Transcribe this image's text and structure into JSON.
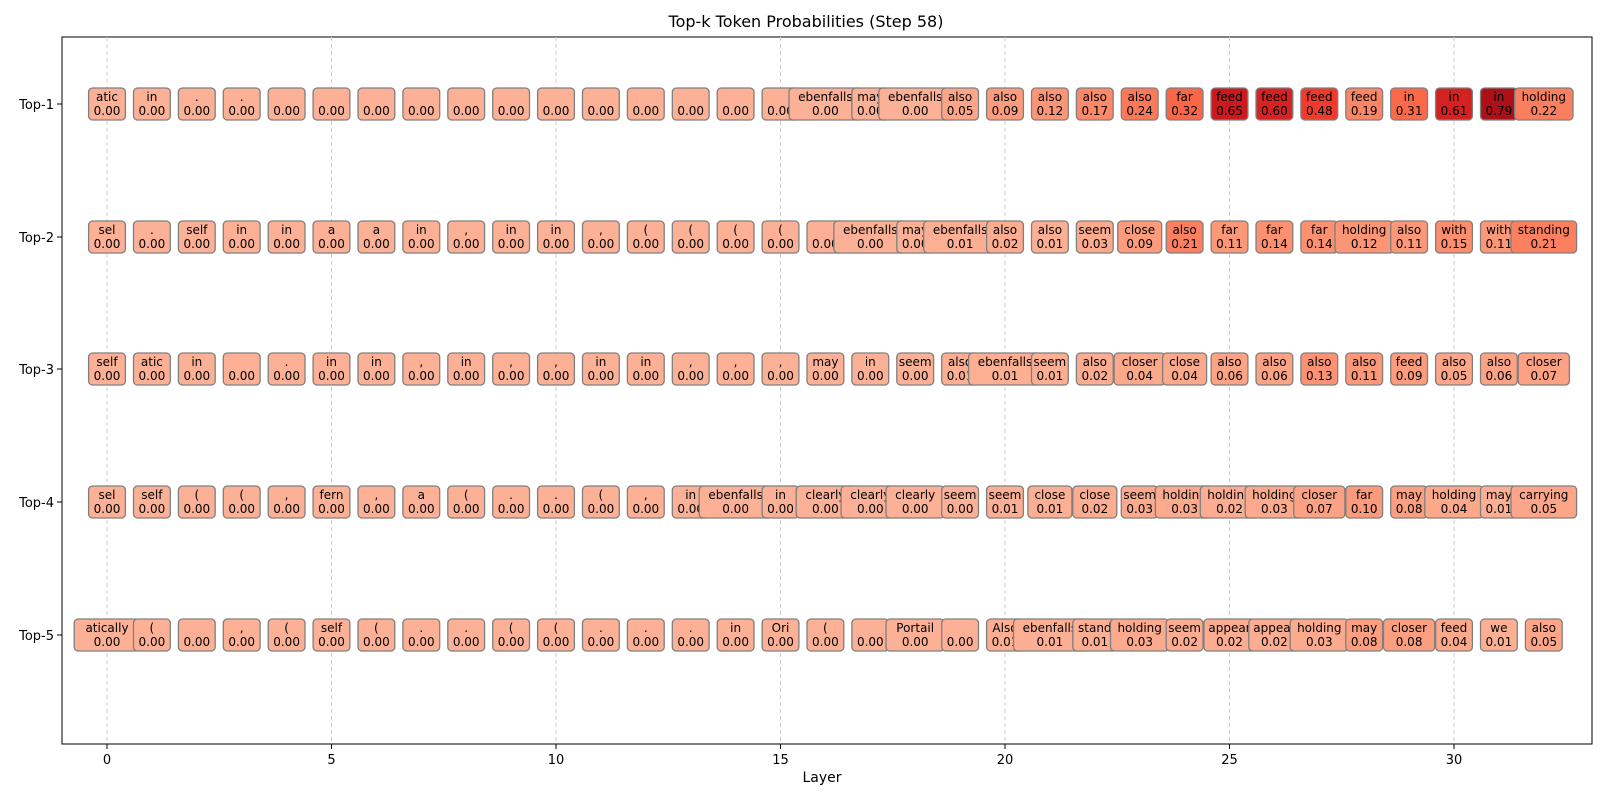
{
  "chart_data": {
    "type": "heatmap",
    "title": "Top-k Token Probabilities (Step 58)",
    "xlabel": "Layer",
    "ylabel": "",
    "rows": [
      "Top-1",
      "Top-2",
      "Top-3",
      "Top-4",
      "Top-5"
    ],
    "layers": [
      0,
      1,
      2,
      3,
      4,
      5,
      6,
      7,
      8,
      9,
      10,
      11,
      12,
      13,
      14,
      15,
      16,
      17,
      18,
      19,
      20,
      21,
      22,
      23,
      24,
      25,
      26,
      27,
      28,
      29,
      30,
      31,
      32
    ],
    "xlim": [
      -1,
      33
    ],
    "xticks": [
      0,
      5,
      10,
      15,
      20,
      25,
      30
    ],
    "grid": "vertical dashed",
    "colormap": "Reds",
    "tokens": [
      [
        "atic",
        "in",
        ".",
        ".",
        "",
        "",
        "",
        "",
        "",
        "",
        "",
        "",
        "",
        "",
        "",
        "",
        "ebenfalls",
        "may",
        "ebenfalls",
        "also",
        "also",
        "also",
        "also",
        "also",
        "far",
        "feed",
        "feed",
        "feed",
        "feed",
        "in",
        "in",
        "in",
        "holding"
      ],
      [
        "sel",
        ".",
        "self",
        "in",
        "in",
        "a",
        "a",
        "in",
        ",",
        "in",
        "in",
        ",",
        "(",
        "(",
        "(",
        "(",
        "",
        "ebenfalls",
        "may",
        "ebenfalls",
        "also",
        "also",
        "seem",
        "close",
        "also",
        "far",
        "far",
        "far",
        "holding",
        "also",
        "with",
        "with",
        "standing"
      ],
      [
        "self",
        "atic",
        "in",
        "",
        ".",
        "in",
        "in",
        ",",
        "in",
        ",",
        ",",
        "in",
        "in",
        ",",
        ",",
        ",",
        "may",
        "in",
        "seem",
        "also",
        "ebenfalls",
        "seem",
        "also",
        "closer",
        "close",
        "also",
        "also",
        "also",
        "also",
        "feed",
        "also",
        "also",
        "closer"
      ],
      [
        "sel",
        "self",
        "(",
        "(",
        ",",
        "fern",
        ",",
        "a",
        "(",
        ".",
        ".",
        "(",
        ",",
        "in",
        "ebenfalls",
        "in",
        "clearly",
        "clearly",
        "clearly",
        "seem",
        "seem",
        "close",
        "close",
        "seem",
        "holding",
        "holding",
        "holding",
        "closer",
        "far",
        "may",
        "holding",
        "may",
        "carrying"
      ],
      [
        "atically",
        "(",
        "",
        ",",
        "(",
        "self",
        "(",
        ".",
        ".",
        "(",
        "(",
        ".",
        ".",
        ".",
        "in",
        "Ori",
        "(",
        "",
        "Portail",
        "",
        "Also",
        "ebenfalls",
        "stand",
        "holding",
        "seem",
        "appear",
        "appear",
        "holding",
        "may",
        "closer",
        "feed",
        "we",
        "also"
      ]
    ],
    "probs": [
      [
        0.0,
        0.0,
        0.0,
        0.0,
        0.0,
        0.0,
        0.0,
        0.0,
        0.0,
        0.0,
        0.0,
        0.0,
        0.0,
        0.0,
        0.0,
        0.0,
        0.0,
        0.0,
        0.0,
        0.05,
        0.09,
        0.12,
        0.17,
        0.24,
        0.32,
        0.65,
        0.6,
        0.48,
        0.19,
        0.31,
        0.61,
        0.79,
        0.22
      ],
      [
        0.0,
        0.0,
        0.0,
        0.0,
        0.0,
        0.0,
        0.0,
        0.0,
        0.0,
        0.0,
        0.0,
        0.0,
        0.0,
        0.0,
        0.0,
        0.0,
        0.0,
        0.0,
        0.0,
        0.01,
        0.02,
        0.01,
        0.03,
        0.09,
        0.21,
        0.11,
        0.14,
        0.14,
        0.12,
        0.11,
        0.15,
        0.11,
        0.21
      ],
      [
        0.0,
        0.0,
        0.0,
        0.0,
        0.0,
        0.0,
        0.0,
        0.0,
        0.0,
        0.0,
        0.0,
        0.0,
        0.0,
        0.0,
        0.0,
        0.0,
        0.0,
        0.0,
        0.0,
        0.01,
        0.01,
        0.01,
        0.02,
        0.04,
        0.04,
        0.06,
        0.06,
        0.13,
        0.11,
        0.09,
        0.05,
        0.06,
        0.07
      ],
      [
        0.0,
        0.0,
        0.0,
        0.0,
        0.0,
        0.0,
        0.0,
        0.0,
        0.0,
        0.0,
        0.0,
        0.0,
        0.0,
        0.0,
        0.0,
        0.0,
        0.0,
        0.0,
        0.0,
        0.0,
        0.01,
        0.01,
        0.02,
        0.03,
        0.03,
        0.02,
        0.03,
        0.07,
        0.1,
        0.08,
        0.04,
        0.01,
        0.05
      ],
      [
        0.0,
        0.0,
        0.0,
        0.0,
        0.0,
        0.0,
        0.0,
        0.0,
        0.0,
        0.0,
        0.0,
        0.0,
        0.0,
        0.0,
        0.0,
        0.0,
        0.0,
        0.0,
        0.0,
        0.0,
        0.01,
        0.01,
        0.01,
        0.03,
        0.02,
        0.02,
        0.02,
        0.03,
        0.08,
        0.08,
        0.04,
        0.01,
        0.05
      ]
    ]
  }
}
